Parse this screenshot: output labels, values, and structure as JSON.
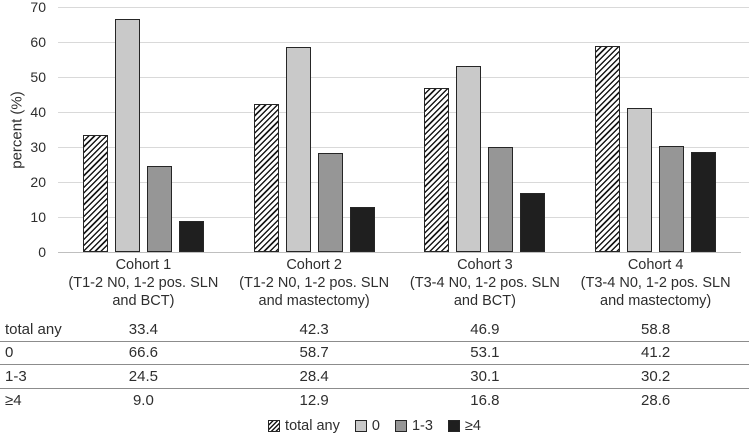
{
  "figure": {
    "background": "#ffffff"
  },
  "chart_data": {
    "type": "bar",
    "title": "",
    "xlabel": "",
    "ylabel": "percent (%)",
    "ylim": [
      0,
      70
    ],
    "yticks": [
      0,
      10,
      20,
      30,
      40,
      50,
      60,
      70
    ],
    "grid": true,
    "legend_position": "bottom",
    "categories": [
      {
        "name": "Cohort 1",
        "desc": "(T1-2 N0, 1-2 pos. SLN and BCT)"
      },
      {
        "name": "Cohort 2",
        "desc": "(T1-2 N0, 1-2 pos. SLN and mastectomy)"
      },
      {
        "name": "Cohort 3",
        "desc": "(T3-4 N0, 1-2 pos. SLN and BCT)"
      },
      {
        "name": "Cohort 4",
        "desc": "(T3-4 N0, 1-2 pos. SLN and mastectomy)"
      }
    ],
    "series": [
      {
        "name": "total any",
        "fill": "hatch",
        "values": [
          33.4,
          42.3,
          46.9,
          58.8
        ]
      },
      {
        "name": "0",
        "fill": "#c9c9c9",
        "values": [
          66.6,
          58.7,
          53.1,
          41.2
        ]
      },
      {
        "name": "1-3",
        "fill": "#969696",
        "values": [
          24.5,
          28.4,
          30.1,
          30.2
        ]
      },
      {
        "name": "≥4",
        "fill": "#1f1f1f",
        "values": [
          9.0,
          12.9,
          16.8,
          28.6
        ]
      }
    ],
    "table": {
      "row_labels": [
        "total any",
        "0",
        "1-3",
        "≥4"
      ],
      "rows": [
        [
          "33.4",
          "42.3",
          "46.9",
          "58.8"
        ],
        [
          "66.6",
          "58.7",
          "53.1",
          "41.2"
        ],
        [
          "24.5",
          "28.4",
          "30.1",
          "30.2"
        ],
        [
          "9.0",
          "12.9",
          "16.8",
          "28.6"
        ]
      ]
    },
    "legend": [
      "total any",
      "0",
      "1-3",
      "≥4"
    ],
    "colors": {
      "bar_border": "#262626",
      "grid": "#d9d9d9",
      "axis_line": "#bfbfbf",
      "text": "#2e2e2e",
      "hatch_stripe": "#1a1a1a"
    }
  }
}
